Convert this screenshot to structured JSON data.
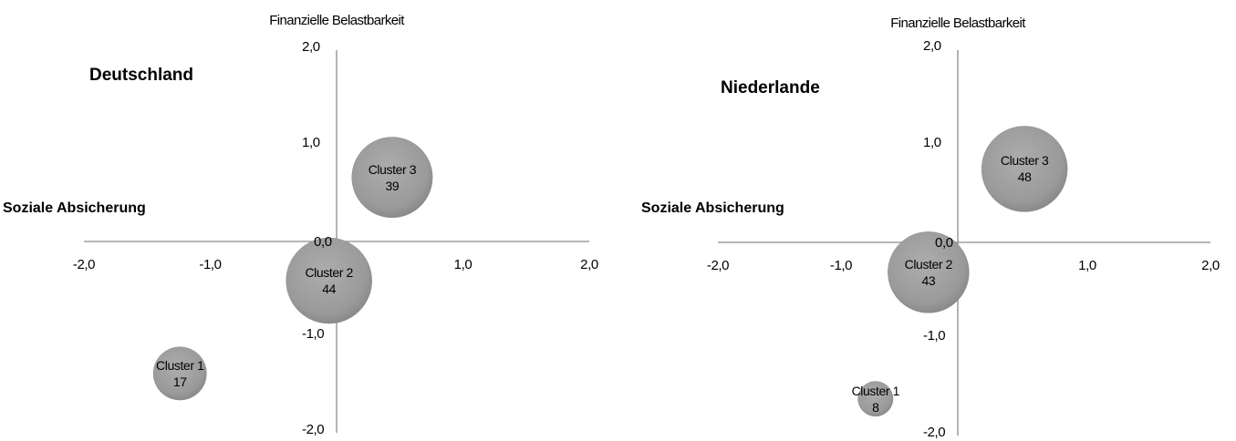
{
  "chart_data": [
    {
      "type": "bubble",
      "title": "Deutschland",
      "xlabel": "Soziale Absicherung",
      "ylabel": "Finanzielle Belastbarkeit",
      "xlim": [
        -2.0,
        2.0
      ],
      "ylim": [
        -2.0,
        2.0
      ],
      "x_ticks": [
        "-2,0",
        "-1,0",
        "0,0",
        "1,0",
        "2,0"
      ],
      "y_ticks": [
        "2,0",
        "1,0",
        "-1,0",
        "-2,0"
      ],
      "bubbles": [
        {
          "name": "Cluster 1",
          "x": -1.24,
          "y": -1.38,
          "size": 17
        },
        {
          "name": "Cluster 2",
          "x": -0.06,
          "y": -0.41,
          "size": 44
        },
        {
          "name": "Cluster 3",
          "x": 0.44,
          "y": 0.67,
          "size": 39
        }
      ],
      "bubble_color": "#9a9a9a"
    },
    {
      "type": "bubble",
      "title": "Niederlande",
      "xlabel": "Soziale Absicherung",
      "ylabel": "Finanzielle Belastbarkeit",
      "xlim": [
        -2.0,
        2.0
      ],
      "ylim": [
        -2.0,
        2.0
      ],
      "x_ticks": [
        "-2,0",
        "-1,0",
        "0,0",
        "1,0",
        "2,0"
      ],
      "y_ticks": [
        "2,0",
        "1,0",
        "-1,0",
        "-2,0"
      ],
      "bubbles": [
        {
          "name": "Cluster 1",
          "x": -0.72,
          "y": -1.62,
          "size": 8
        },
        {
          "name": "Cluster 2",
          "x": -0.29,
          "y": -0.31,
          "size": 43
        },
        {
          "name": "Cluster 3",
          "x": 0.49,
          "y": 0.76,
          "size": 48
        }
      ],
      "bubble_color": "#9a9a9a"
    }
  ]
}
